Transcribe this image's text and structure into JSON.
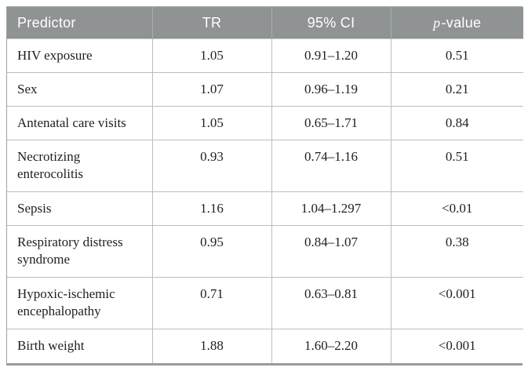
{
  "table": {
    "header": {
      "predictor": "Predictor",
      "tr": "TR",
      "ci": "95% CI",
      "p_italic": "p",
      "p_rest": "-value"
    },
    "rows": [
      {
        "predictor": "HIV exposure",
        "tr": "1.05",
        "ci": "0.91–1.20",
        "p": "0.51"
      },
      {
        "predictor": "Sex",
        "tr": "1.07",
        "ci": "0.96–1.19",
        "p": "0.21"
      },
      {
        "predictor": "Antenatal care visits",
        "tr": "1.05",
        "ci": "0.65–1.71",
        "p": "0.84"
      },
      {
        "predictor": "Necrotizing enterocolitis",
        "tr": "0.93",
        "ci": "0.74–1.16",
        "p": "0.51"
      },
      {
        "predictor": "Sepsis",
        "tr": "1.16",
        "ci": "1.04–1.297",
        "p": "<0.01"
      },
      {
        "predictor": "Respiratory distress syndrome",
        "tr": "0.95",
        "ci": "0.84–1.07",
        "p": "0.38"
      },
      {
        "predictor": "Hypoxic-ischemic encephalopathy",
        "tr": "0.71",
        "ci": "0.63–0.81",
        "p": "<0.001"
      },
      {
        "predictor": "Birth weight",
        "tr": "1.88",
        "ci": "1.60–2.20",
        "p": "<0.001"
      }
    ],
    "colors": {
      "header_bg": "#8f9394",
      "header_text": "#ffffff",
      "header_divider": "#aaadae",
      "inner_border": "#bcbfbf",
      "outer_border": "#9da0a1",
      "bottom_rule": "#989c9d",
      "body_text": "#1f1f1f"
    }
  }
}
